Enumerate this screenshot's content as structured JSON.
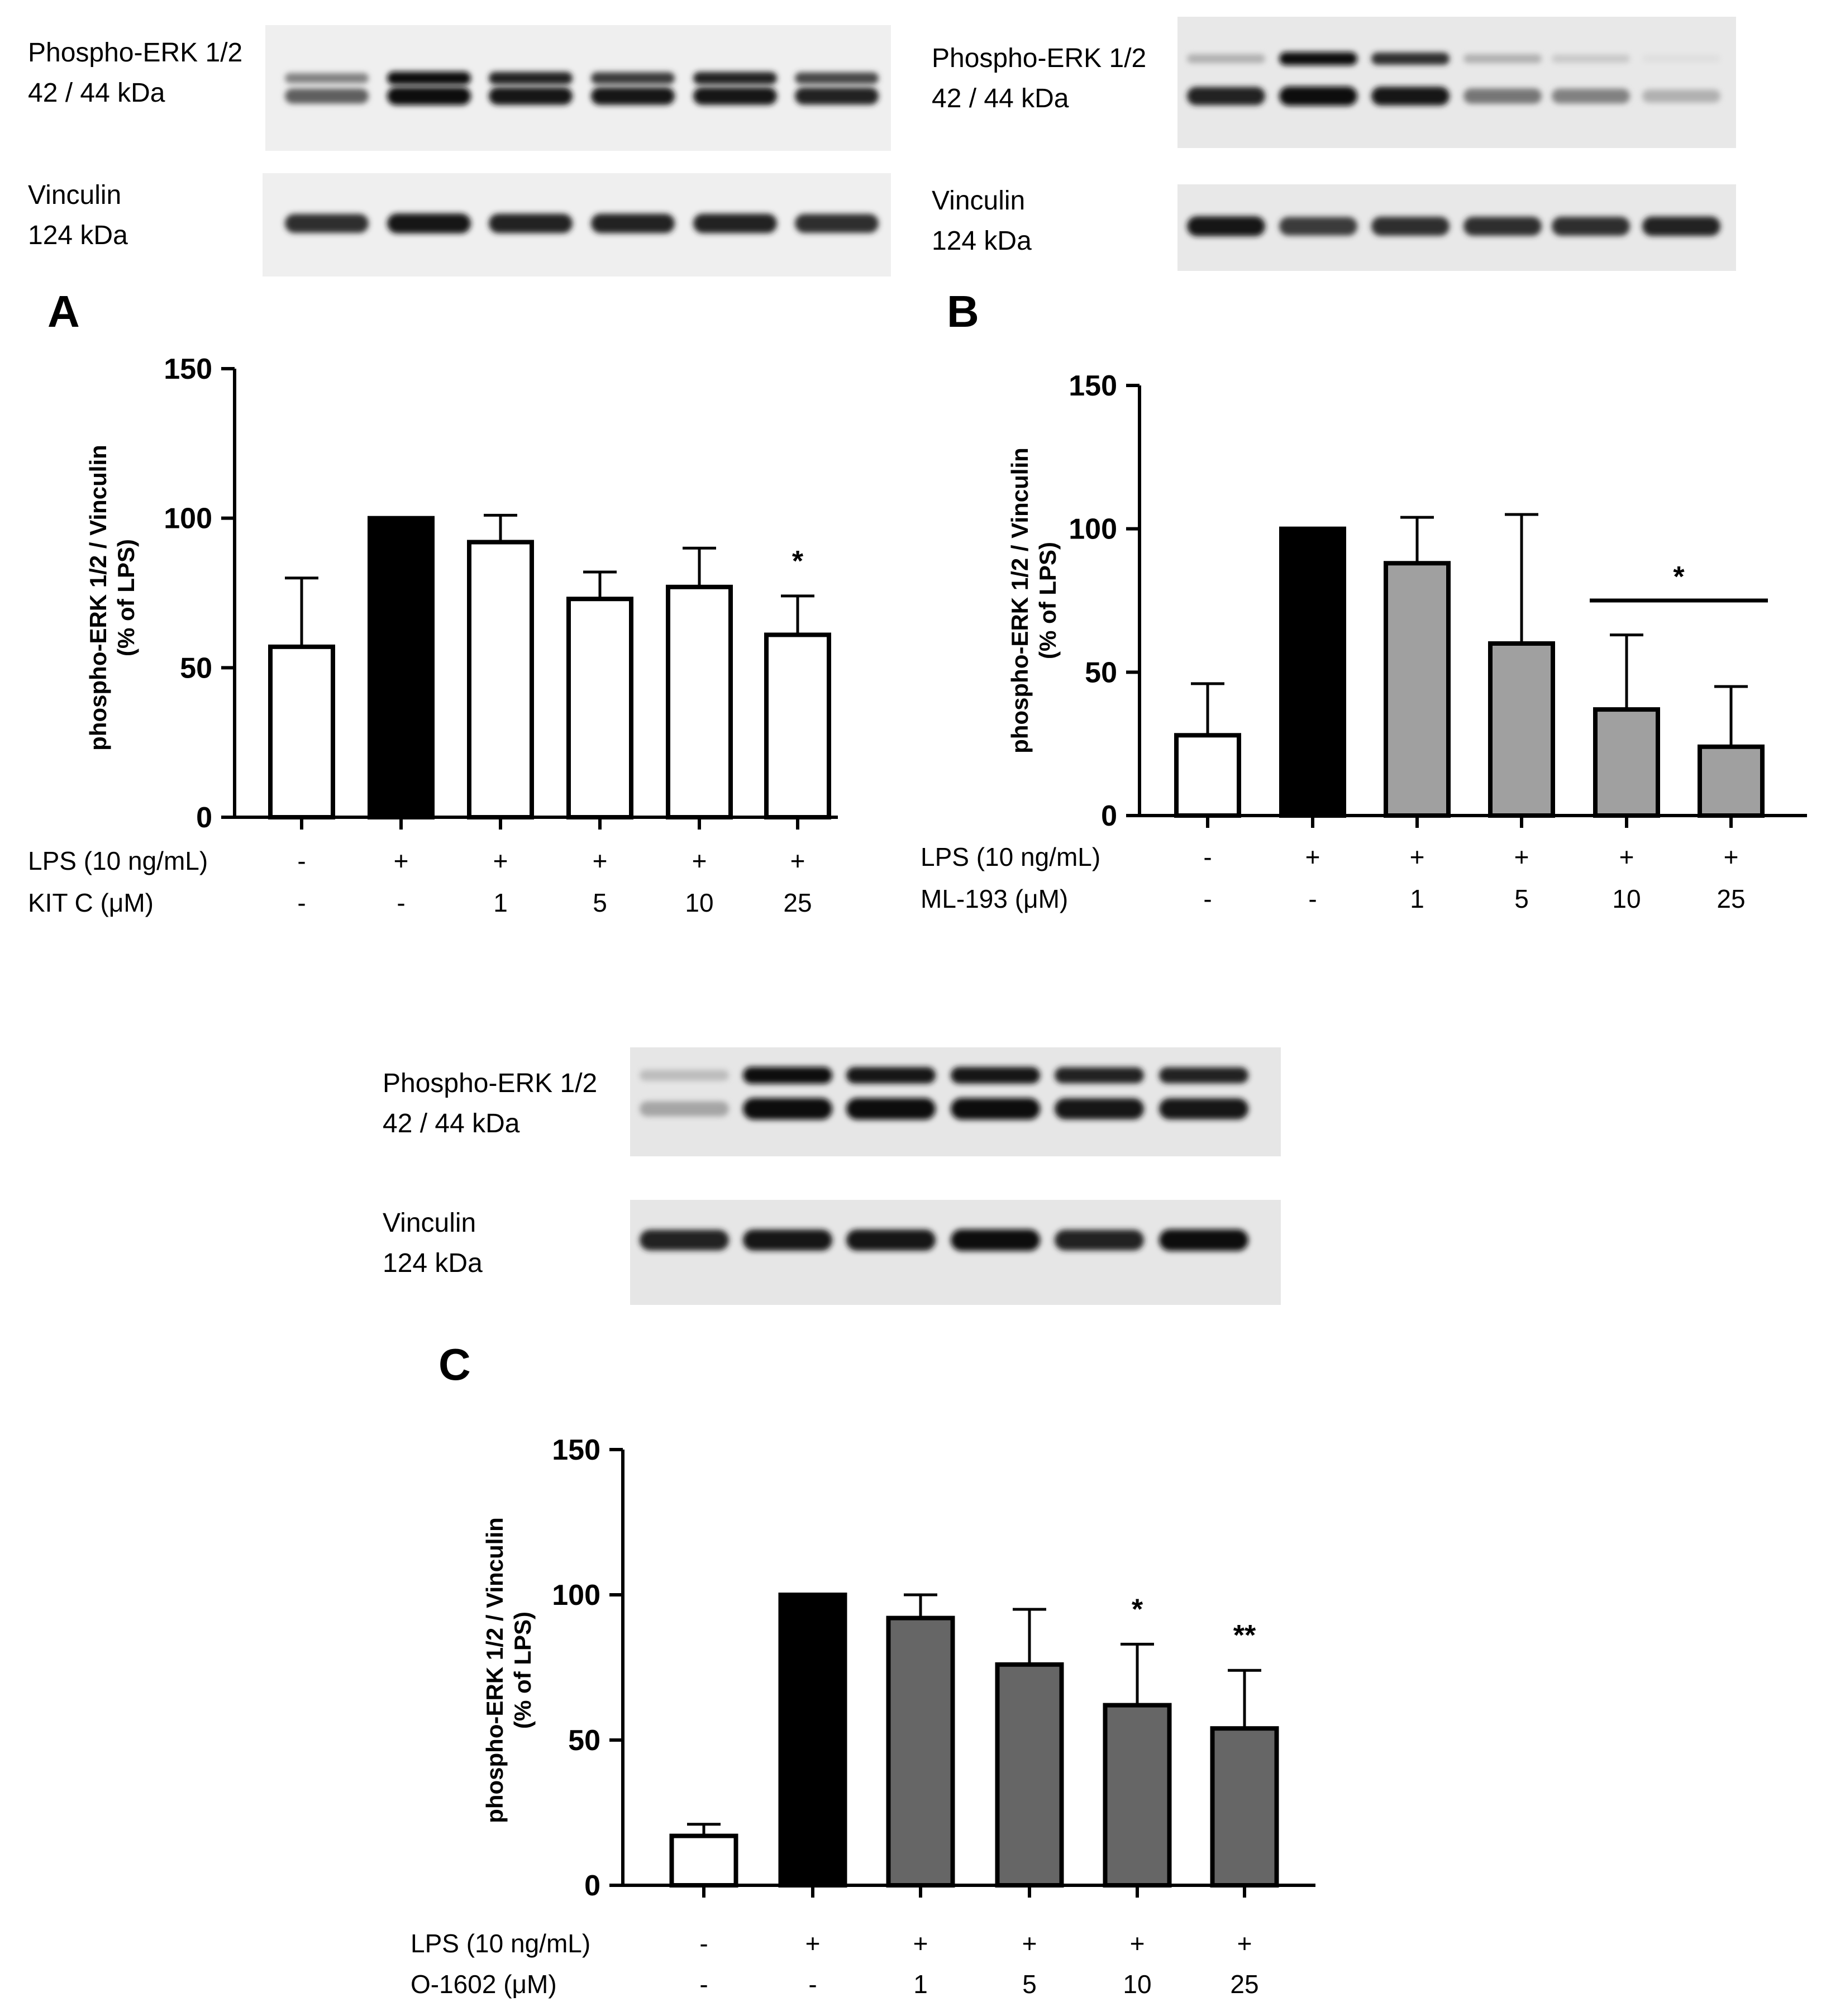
{
  "panels": [
    {
      "letter": "A",
      "blot": {
        "erk_label_line1": "Phospho-ERK 1/2",
        "erk_label_line2": "42 / 44 kDa",
        "vinc_label_line1": "Vinculin",
        "vinc_label_line2": "124 kDa",
        "erk_upper": [
          0.45,
          0.95,
          0.85,
          0.75,
          0.85,
          0.7
        ],
        "erk_lower": [
          0.6,
          0.95,
          0.9,
          0.9,
          0.9,
          0.85
        ],
        "vinculin": [
          0.8,
          0.9,
          0.85,
          0.85,
          0.85,
          0.8
        ],
        "background": "#efefef"
      },
      "rows": [
        {
          "label": "LPS (10 ng/mL)",
          "values": [
            "-",
            "+",
            "+",
            "+",
            "+",
            "+"
          ]
        },
        {
          "label": "KIT C (μM)",
          "values": [
            "-",
            "-",
            "1",
            "5",
            "10",
            "25"
          ]
        }
      ]
    },
    {
      "letter": "B",
      "blot": {
        "erk_label_line1": "Phospho-ERK 1/2",
        "erk_label_line2": "42 / 44 kDa",
        "vinc_label_line1": "Vinculin",
        "vinc_label_line2": "124 kDa",
        "erk_upper": [
          0.25,
          0.95,
          0.8,
          0.25,
          0.15,
          0.05
        ],
        "erk_lower": [
          0.85,
          0.95,
          0.9,
          0.5,
          0.45,
          0.25
        ],
        "vinculin": [
          0.9,
          0.75,
          0.8,
          0.8,
          0.8,
          0.85
        ],
        "background": "#e8e8e8"
      },
      "rows": [
        {
          "label": "LPS (10 ng/mL)",
          "values": [
            "-",
            "+",
            "+",
            "+",
            "+",
            "+"
          ]
        },
        {
          "label": "ML-193 (μM)",
          "values": [
            "-",
            "-",
            "1",
            "5",
            "10",
            "25"
          ]
        }
      ]
    },
    {
      "letter": "C",
      "blot": {
        "erk_label_line1": "Phospho-ERK 1/2",
        "erk_label_line2": "42 / 44 kDa",
        "vinc_label_line1": "Vinculin",
        "vinc_label_line2": "124 kDa",
        "erk_upper": [
          0.2,
          0.95,
          0.9,
          0.92,
          0.85,
          0.85
        ],
        "erk_lower": [
          0.3,
          0.95,
          0.95,
          0.95,
          0.9,
          0.9
        ],
        "vinculin": [
          0.85,
          0.9,
          0.9,
          0.95,
          0.85,
          0.95
        ],
        "background": "#e6e6e6"
      },
      "rows": [
        {
          "label": "LPS (10 ng/mL)",
          "values": [
            "-",
            "+",
            "+",
            "+",
            "+",
            "+"
          ]
        },
        {
          "label": "O-1602 (μM)",
          "values": [
            "-",
            "-",
            "1",
            "5",
            "10",
            "25"
          ]
        }
      ]
    }
  ],
  "chart_data": [
    {
      "type": "bar",
      "panel": "A",
      "title": "",
      "ylabel_line1": "phospho-ERK 1/2 / Vinculin",
      "ylabel_line2": "(% of LPS)",
      "ylim": [
        0,
        150
      ],
      "yticks": [
        "0",
        "50",
        "100",
        "150"
      ],
      "values": [
        57,
        100,
        92,
        73,
        77,
        61
      ],
      "errors": [
        23,
        0,
        9,
        9,
        13,
        13
      ],
      "fills": [
        "#ffffff",
        "#000000",
        "#ffffff",
        "#ffffff",
        "#ffffff",
        "#ffffff"
      ],
      "significance": [
        {
          "index": 5,
          "label": "*"
        }
      ],
      "bracket": null
    },
    {
      "type": "bar",
      "panel": "B",
      "title": "",
      "ylabel_line1": "phospho-ERK 1/2 / Vinculin",
      "ylabel_line2": "(% of LPS)",
      "ylim": [
        0,
        150
      ],
      "yticks": [
        "0",
        "50",
        "100",
        "150"
      ],
      "values": [
        28,
        100,
        88,
        60,
        37,
        24
      ],
      "errors": [
        18,
        0,
        16,
        45,
        26,
        21
      ],
      "fills": [
        "#ffffff",
        "#000000",
        "#a0a0a0",
        "#a0a0a0",
        "#a0a0a0",
        "#a0a0a0"
      ],
      "significance": [],
      "bracket": {
        "from": 4,
        "to": 5,
        "label": "*",
        "y": 75
      }
    },
    {
      "type": "bar",
      "panel": "C",
      "title": "",
      "ylabel_line1": "phospho-ERK 1/2 / Vinculin",
      "ylabel_line2": "(% of LPS)",
      "ylim": [
        0,
        150
      ],
      "yticks": [
        "0",
        "50",
        "100",
        "150"
      ],
      "values": [
        17,
        100,
        92,
        76,
        62,
        54
      ],
      "errors": [
        4,
        0,
        8,
        19,
        21,
        20
      ],
      "fills": [
        "#ffffff",
        "#000000",
        "#666666",
        "#666666",
        "#666666",
        "#666666"
      ],
      "significance": [
        {
          "index": 4,
          "label": "*"
        },
        {
          "index": 5,
          "label": "**"
        }
      ],
      "bracket": null
    }
  ]
}
